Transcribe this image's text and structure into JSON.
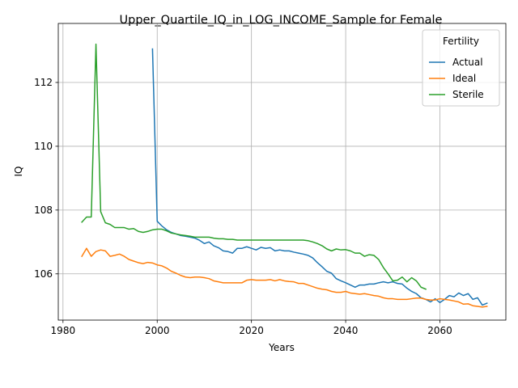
{
  "chart_data": {
    "type": "line",
    "title": "Upper_Quartile_IQ_in_LOG_INCOME_Sample for Female",
    "xlabel": "Years",
    "ylabel": "IQ",
    "xlim": [
      1979,
      2074
    ],
    "ylim": [
      104.55,
      113.85
    ],
    "xticks": [
      1980,
      2000,
      2020,
      2040,
      2060
    ],
    "yticks": [
      106,
      108,
      110,
      112
    ],
    "grid": true,
    "legend": {
      "title": "Fertility",
      "placement": "top-right"
    },
    "series": [
      {
        "name": "Actual",
        "color": "#1f77b4",
        "points": [
          [
            1999,
            113.05
          ],
          [
            2000,
            107.65
          ],
          [
            2001,
            107.5
          ],
          [
            2002,
            107.38
          ],
          [
            2003,
            107.3
          ],
          [
            2004,
            107.25
          ],
          [
            2005,
            107.2
          ],
          [
            2006,
            107.18
          ],
          [
            2007,
            107.15
          ],
          [
            2008,
            107.12
          ],
          [
            2009,
            107.05
          ],
          [
            2010,
            106.95
          ],
          [
            2011,
            107.0
          ],
          [
            2012,
            106.88
          ],
          [
            2013,
            106.82
          ],
          [
            2014,
            106.72
          ],
          [
            2015,
            106.7
          ],
          [
            2016,
            106.65
          ],
          [
            2017,
            106.8
          ],
          [
            2018,
            106.8
          ],
          [
            2019,
            106.85
          ],
          [
            2020,
            106.8
          ],
          [
            2021,
            106.75
          ],
          [
            2022,
            106.83
          ],
          [
            2023,
            106.8
          ],
          [
            2024,
            106.82
          ],
          [
            2025,
            106.72
          ],
          [
            2026,
            106.75
          ],
          [
            2027,
            106.72
          ],
          [
            2028,
            106.72
          ],
          [
            2029,
            106.68
          ],
          [
            2030,
            106.65
          ],
          [
            2031,
            106.62
          ],
          [
            2032,
            106.58
          ],
          [
            2033,
            106.5
          ],
          [
            2034,
            106.35
          ],
          [
            2035,
            106.22
          ],
          [
            2036,
            106.08
          ],
          [
            2037,
            106.02
          ],
          [
            2038,
            105.85
          ],
          [
            2039,
            105.78
          ],
          [
            2040,
            105.72
          ],
          [
            2041,
            105.65
          ],
          [
            2042,
            105.58
          ],
          [
            2043,
            105.65
          ],
          [
            2044,
            105.65
          ],
          [
            2045,
            105.68
          ],
          [
            2046,
            105.68
          ],
          [
            2047,
            105.72
          ],
          [
            2048,
            105.75
          ],
          [
            2049,
            105.72
          ],
          [
            2050,
            105.75
          ],
          [
            2051,
            105.7
          ],
          [
            2052,
            105.68
          ],
          [
            2053,
            105.55
          ],
          [
            2054,
            105.45
          ],
          [
            2055,
            105.38
          ],
          [
            2056,
            105.25
          ],
          [
            2057,
            105.2
          ],
          [
            2058,
            105.12
          ],
          [
            2059,
            105.22
          ],
          [
            2060,
            105.1
          ],
          [
            2061,
            105.2
          ],
          [
            2062,
            105.32
          ],
          [
            2063,
            105.28
          ],
          [
            2064,
            105.4
          ],
          [
            2065,
            105.32
          ],
          [
            2066,
            105.38
          ],
          [
            2067,
            105.2
          ],
          [
            2068,
            105.25
          ],
          [
            2069,
            105.02
          ],
          [
            2070,
            105.08
          ]
        ]
      },
      {
        "name": "Ideal",
        "color": "#ff7f0e",
        "points": [
          [
            1984,
            106.55
          ],
          [
            1985,
            106.8
          ],
          [
            1986,
            106.55
          ],
          [
            1987,
            106.7
          ],
          [
            1988,
            106.75
          ],
          [
            1989,
            106.72
          ],
          [
            1990,
            106.55
          ],
          [
            1991,
            106.58
          ],
          [
            1992,
            106.62
          ],
          [
            1993,
            106.55
          ],
          [
            1994,
            106.45
          ],
          [
            1995,
            106.4
          ],
          [
            1996,
            106.35
          ],
          [
            1997,
            106.32
          ],
          [
            1998,
            106.36
          ],
          [
            1999,
            106.34
          ],
          [
            2000,
            106.28
          ],
          [
            2001,
            106.25
          ],
          [
            2002,
            106.18
          ],
          [
            2003,
            106.08
          ],
          [
            2004,
            106.02
          ],
          [
            2005,
            105.95
          ],
          [
            2006,
            105.9
          ],
          [
            2007,
            105.88
          ],
          [
            2008,
            105.9
          ],
          [
            2009,
            105.9
          ],
          [
            2010,
            105.88
          ],
          [
            2011,
            105.85
          ],
          [
            2012,
            105.78
          ],
          [
            2013,
            105.75
          ],
          [
            2014,
            105.72
          ],
          [
            2015,
            105.72
          ],
          [
            2016,
            105.72
          ],
          [
            2017,
            105.72
          ],
          [
            2018,
            105.72
          ],
          [
            2019,
            105.8
          ],
          [
            2020,
            105.82
          ],
          [
            2021,
            105.8
          ],
          [
            2022,
            105.8
          ],
          [
            2023,
            105.8
          ],
          [
            2024,
            105.82
          ],
          [
            2025,
            105.78
          ],
          [
            2026,
            105.82
          ],
          [
            2027,
            105.78
          ],
          [
            2028,
            105.76
          ],
          [
            2029,
            105.75
          ],
          [
            2030,
            105.7
          ],
          [
            2031,
            105.7
          ],
          [
            2032,
            105.65
          ],
          [
            2033,
            105.6
          ],
          [
            2034,
            105.55
          ],
          [
            2035,
            105.52
          ],
          [
            2036,
            105.5
          ],
          [
            2037,
            105.45
          ],
          [
            2038,
            105.42
          ],
          [
            2039,
            105.42
          ],
          [
            2040,
            105.45
          ],
          [
            2041,
            105.4
          ],
          [
            2042,
            105.38
          ],
          [
            2043,
            105.36
          ],
          [
            2044,
            105.38
          ],
          [
            2045,
            105.35
          ],
          [
            2046,
            105.32
          ],
          [
            2047,
            105.3
          ],
          [
            2048,
            105.25
          ],
          [
            2049,
            105.22
          ],
          [
            2050,
            105.22
          ],
          [
            2051,
            105.2
          ],
          [
            2052,
            105.2
          ],
          [
            2053,
            105.2
          ],
          [
            2054,
            105.22
          ],
          [
            2055,
            105.24
          ],
          [
            2056,
            105.24
          ],
          [
            2057,
            105.2
          ],
          [
            2058,
            105.18
          ],
          [
            2059,
            105.18
          ],
          [
            2060,
            105.22
          ],
          [
            2061,
            105.2
          ],
          [
            2062,
            105.18
          ],
          [
            2063,
            105.15
          ],
          [
            2064,
            105.12
          ],
          [
            2065,
            105.05
          ],
          [
            2066,
            105.06
          ],
          [
            2067,
            105.0
          ],
          [
            2068,
            104.98
          ],
          [
            2069,
            104.96
          ],
          [
            2070,
            104.98
          ]
        ]
      },
      {
        "name": "Sterile",
        "color": "#2ca02c",
        "points": [
          [
            1984,
            107.62
          ],
          [
            1985,
            107.78
          ],
          [
            1986,
            107.78
          ],
          [
            1987,
            113.2
          ],
          [
            1988,
            107.95
          ],
          [
            1989,
            107.6
          ],
          [
            1990,
            107.55
          ],
          [
            1991,
            107.45
          ],
          [
            1992,
            107.45
          ],
          [
            1993,
            107.45
          ],
          [
            1994,
            107.4
          ],
          [
            1995,
            107.42
          ],
          [
            1996,
            107.33
          ],
          [
            1997,
            107.3
          ],
          [
            1998,
            107.33
          ],
          [
            1999,
            107.38
          ],
          [
            2000,
            107.4
          ],
          [
            2001,
            107.4
          ],
          [
            2002,
            107.35
          ],
          [
            2003,
            107.28
          ],
          [
            2004,
            107.25
          ],
          [
            2005,
            107.22
          ],
          [
            2006,
            107.2
          ],
          [
            2007,
            107.18
          ],
          [
            2008,
            107.15
          ],
          [
            2009,
            107.15
          ],
          [
            2010,
            107.15
          ],
          [
            2011,
            107.15
          ],
          [
            2012,
            107.12
          ],
          [
            2013,
            107.1
          ],
          [
            2014,
            107.1
          ],
          [
            2015,
            107.08
          ],
          [
            2016,
            107.08
          ],
          [
            2017,
            107.06
          ],
          [
            2018,
            107.06
          ],
          [
            2019,
            107.06
          ],
          [
            2020,
            107.06
          ],
          [
            2021,
            107.06
          ],
          [
            2022,
            107.06
          ],
          [
            2023,
            107.06
          ],
          [
            2024,
            107.06
          ],
          [
            2025,
            107.06
          ],
          [
            2026,
            107.06
          ],
          [
            2027,
            107.06
          ],
          [
            2028,
            107.06
          ],
          [
            2029,
            107.06
          ],
          [
            2030,
            107.06
          ],
          [
            2031,
            107.06
          ],
          [
            2032,
            107.04
          ],
          [
            2033,
            107.0
          ],
          [
            2034,
            106.95
          ],
          [
            2035,
            106.88
          ],
          [
            2036,
            106.78
          ],
          [
            2037,
            106.72
          ],
          [
            2038,
            106.78
          ],
          [
            2039,
            106.75
          ],
          [
            2040,
            106.76
          ],
          [
            2041,
            106.72
          ],
          [
            2042,
            106.65
          ],
          [
            2043,
            106.65
          ],
          [
            2044,
            106.55
          ],
          [
            2045,
            106.6
          ],
          [
            2046,
            106.58
          ],
          [
            2047,
            106.45
          ],
          [
            2048,
            106.2
          ],
          [
            2049,
            106.0
          ],
          [
            2050,
            105.78
          ],
          [
            2051,
            105.8
          ],
          [
            2052,
            105.9
          ],
          [
            2053,
            105.75
          ],
          [
            2054,
            105.88
          ],
          [
            2055,
            105.78
          ],
          [
            2056,
            105.58
          ],
          [
            2057,
            105.52
          ]
        ]
      }
    ]
  }
}
